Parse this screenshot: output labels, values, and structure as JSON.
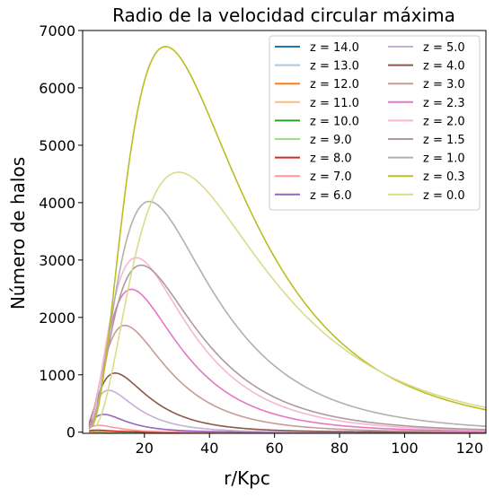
{
  "chart_data": {
    "type": "line",
    "title": "Radio de la velocidad circular máxima",
    "xlabel": "r/Kpc",
    "ylabel": "Número de halos",
    "xlim": [
      1,
      125
    ],
    "ylim": [
      -20,
      7000
    ],
    "xticks": [
      20,
      40,
      60,
      80,
      100,
      120
    ],
    "yticks": [
      0,
      1000,
      2000,
      3000,
      4000,
      5000,
      6000,
      7000
    ],
    "grid": false,
    "legend_position": "top-right",
    "legend_columns": 2,
    "series": [
      {
        "name": "z = 14.0",
        "color": "#1f77b4",
        "peak_x": 3.0,
        "peak_y": 0,
        "width": 1.0,
        "start_x": 3.0
      },
      {
        "name": "z = 13.0",
        "color": "#aec7e8",
        "peak_x": 3.0,
        "peak_y": 1,
        "width": 1.0,
        "start_x": 3.0
      },
      {
        "name": "z = 12.0",
        "color": "#ff7f0e",
        "peak_x": 3.2,
        "peak_y": 2,
        "width": 1.0,
        "start_x": 3.0
      },
      {
        "name": "z = 11.0",
        "color": "#ffbb78",
        "peak_x": 3.6,
        "peak_y": 4,
        "width": 1.2,
        "start_x": 3.0
      },
      {
        "name": "z = 10.0",
        "color": "#2ca02c",
        "peak_x": 4.0,
        "peak_y": 8,
        "width": 1.4,
        "start_x": 3.0
      },
      {
        "name": "z = 9.0",
        "color": "#98df8a",
        "peak_x": 4.5,
        "peak_y": 15,
        "width": 1.6,
        "start_x": 3.0
      },
      {
        "name": "z = 8.0",
        "color": "#d62728",
        "peak_x": 5.2,
        "peak_y": 35,
        "width": 1.9,
        "start_x": 3.0
      },
      {
        "name": "z = 7.0",
        "color": "#ff9896",
        "peak_x": 6.0,
        "peak_y": 120,
        "width": 2.2,
        "start_x": 3.0
      },
      {
        "name": "z = 6.0",
        "color": "#9467bd",
        "peak_x": 7.5,
        "peak_y": 310,
        "width": 2.8,
        "start_x": 3.0
      },
      {
        "name": "z = 5.0",
        "color": "#c5b0d5",
        "peak_x": 9.0,
        "peak_y": 730,
        "width": 3.4,
        "start_x": 3.0
      },
      {
        "name": "z = 4.0",
        "color": "#8c564b",
        "peak_x": 11.0,
        "peak_y": 1030,
        "width": 4.0,
        "start_x": 3.0
      },
      {
        "name": "z = 3.0",
        "color": "#c49c94",
        "peak_x": 14.0,
        "peak_y": 1860,
        "width": 5.0,
        "start_x": 3.0
      },
      {
        "name": "z = 2.3",
        "color": "#e377c2",
        "peak_x": 16.0,
        "peak_y": 2490,
        "width": 5.8,
        "start_x": 3.0
      },
      {
        "name": "z = 2.0",
        "color": "#f7b6d2",
        "peak_x": 17.5,
        "peak_y": 3040,
        "width": 6.2,
        "start_x": 4.0
      },
      {
        "name": "z = 1.5",
        "color": "#ad9a9e",
        "peak_x": 19.0,
        "peak_y": 2910,
        "width": 7.2,
        "start_x": 3.0
      },
      {
        "name": "z = 1.0",
        "color": "#b0b0b0",
        "peak_x": 21.5,
        "peak_y": 4020,
        "width": 8.8,
        "start_x": 3.5
      },
      {
        "name": "z = 0.3",
        "color": "#bcbd22",
        "peak_x": 26.5,
        "peak_y": 6720,
        "width": 10.8,
        "start_x": 4.0
      },
      {
        "name": "z = 0.0",
        "color": "#dbdb8d",
        "peak_x": 30.5,
        "peak_y": 4530,
        "width": 12.6,
        "start_x": 5.0
      }
    ]
  }
}
